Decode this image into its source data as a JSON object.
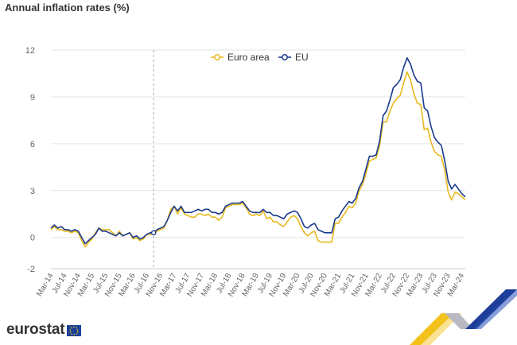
{
  "title": "Annual inflation rates (%)",
  "brand": "eurostat",
  "colors": {
    "euro_area": "#e8b91e",
    "eu": "#1a3a8c",
    "grid": "#e6e6e6",
    "axis_text": "#666666"
  },
  "chart_data": {
    "type": "line",
    "title": "Annual inflation rates (%)",
    "xlabel": "",
    "ylabel": "",
    "ylim": [
      -2,
      12
    ],
    "yticks": [
      -2,
      0,
      3,
      6,
      9,
      12
    ],
    "grid": true,
    "legend_position": "top-center",
    "start_month": "Mar-14",
    "end_month": "Mar-24",
    "x_tick_labels": [
      "Mar-14",
      "Jul-14",
      "Nov-14",
      "Mar-15",
      "Jul-15",
      "Nov-15",
      "Mar-16",
      "Jul-16",
      "Nov-16",
      "Mar-17",
      "Jul-17",
      "Nov-17",
      "Mar-18",
      "Jul-18",
      "Nov-18",
      "Mar-19",
      "Jul-19",
      "Nov-19",
      "Mar-20",
      "Jul-20",
      "Nov-20",
      "Mar-21",
      "Jul-21",
      "Nov-21",
      "Mar-22",
      "Jul-22",
      "Nov-22",
      "Mar-23",
      "Jul-23",
      "Nov-23",
      "Mar-24"
    ],
    "series": [
      {
        "name": "Euro area",
        "values": [
          0.5,
          0.7,
          0.5,
          0.5,
          0.4,
          0.4,
          0.3,
          0.4,
          0.3,
          -0.2,
          -0.6,
          -0.3,
          -0.1,
          0.3,
          0.6,
          0.5,
          0.5,
          0.5,
          0.3,
          0.1,
          0.4,
          0.1,
          0.2,
          0.3,
          -0.1,
          0.0,
          -0.2,
          -0.1,
          0.2,
          0.2,
          0.2,
          0.4,
          0.5,
          0.6,
          1.1,
          1.8,
          2.0,
          1.5,
          1.9,
          1.5,
          1.4,
          1.3,
          1.3,
          1.5,
          1.5,
          1.4,
          1.5,
          1.3,
          1.3,
          1.1,
          1.3,
          1.9,
          2.0,
          2.1,
          2.1,
          2.1,
          2.2,
          1.9,
          1.5,
          1.4,
          1.5,
          1.4,
          1.7,
          1.2,
          1.3,
          1.0,
          1.0,
          0.8,
          0.7,
          1.0,
          1.3,
          1.4,
          1.2,
          0.7,
          0.3,
          0.1,
          0.3,
          0.4,
          -0.2,
          -0.3,
          -0.3,
          -0.3,
          -0.3,
          0.9,
          0.9,
          1.3,
          1.6,
          2.0,
          1.9,
          2.2,
          3.0,
          3.4,
          4.1,
          4.9,
          5.0,
          5.1,
          5.9,
          7.4,
          7.4,
          8.1,
          8.6,
          8.9,
          9.1,
          9.9,
          10.6,
          10.1,
          9.2,
          8.6,
          8.5,
          6.9,
          7.0,
          6.1,
          5.5,
          5.3,
          5.2,
          4.3,
          2.9,
          2.4,
          2.9,
          2.8,
          2.6,
          2.4
        ]
      },
      {
        "name": "EU",
        "values": [
          0.6,
          0.8,
          0.6,
          0.7,
          0.5,
          0.5,
          0.4,
          0.5,
          0.4,
          0.0,
          -0.4,
          -0.2,
          0.0,
          0.2,
          0.6,
          0.4,
          0.4,
          0.3,
          0.2,
          0.1,
          0.3,
          0.1,
          0.2,
          0.3,
          0.0,
          0.1,
          -0.1,
          0.0,
          0.2,
          0.3,
          0.3,
          0.5,
          0.6,
          0.7,
          1.1,
          1.6,
          2.0,
          1.7,
          2.0,
          1.6,
          1.6,
          1.6,
          1.7,
          1.8,
          1.7,
          1.8,
          1.8,
          1.6,
          1.6,
          1.5,
          1.6,
          2.0,
          2.1,
          2.2,
          2.2,
          2.2,
          2.3,
          2.0,
          1.7,
          1.6,
          1.6,
          1.6,
          1.8,
          1.6,
          1.6,
          1.4,
          1.4,
          1.3,
          1.2,
          1.5,
          1.6,
          1.7,
          1.6,
          1.2,
          0.7,
          0.6,
          0.8,
          0.9,
          0.5,
          0.4,
          0.3,
          0.3,
          0.3,
          1.2,
          1.3,
          1.7,
          2.0,
          2.3,
          2.2,
          2.5,
          3.2,
          3.6,
          4.4,
          5.2,
          5.2,
          5.3,
          6.2,
          7.8,
          8.1,
          8.8,
          9.6,
          9.8,
          10.1,
          10.9,
          11.5,
          11.1,
          10.4,
          10.0,
          9.9,
          8.3,
          8.1,
          7.1,
          6.4,
          6.1,
          5.9,
          4.9,
          3.6,
          3.1,
          3.4,
          3.1,
          2.8,
          2.6
        ]
      }
    ]
  }
}
